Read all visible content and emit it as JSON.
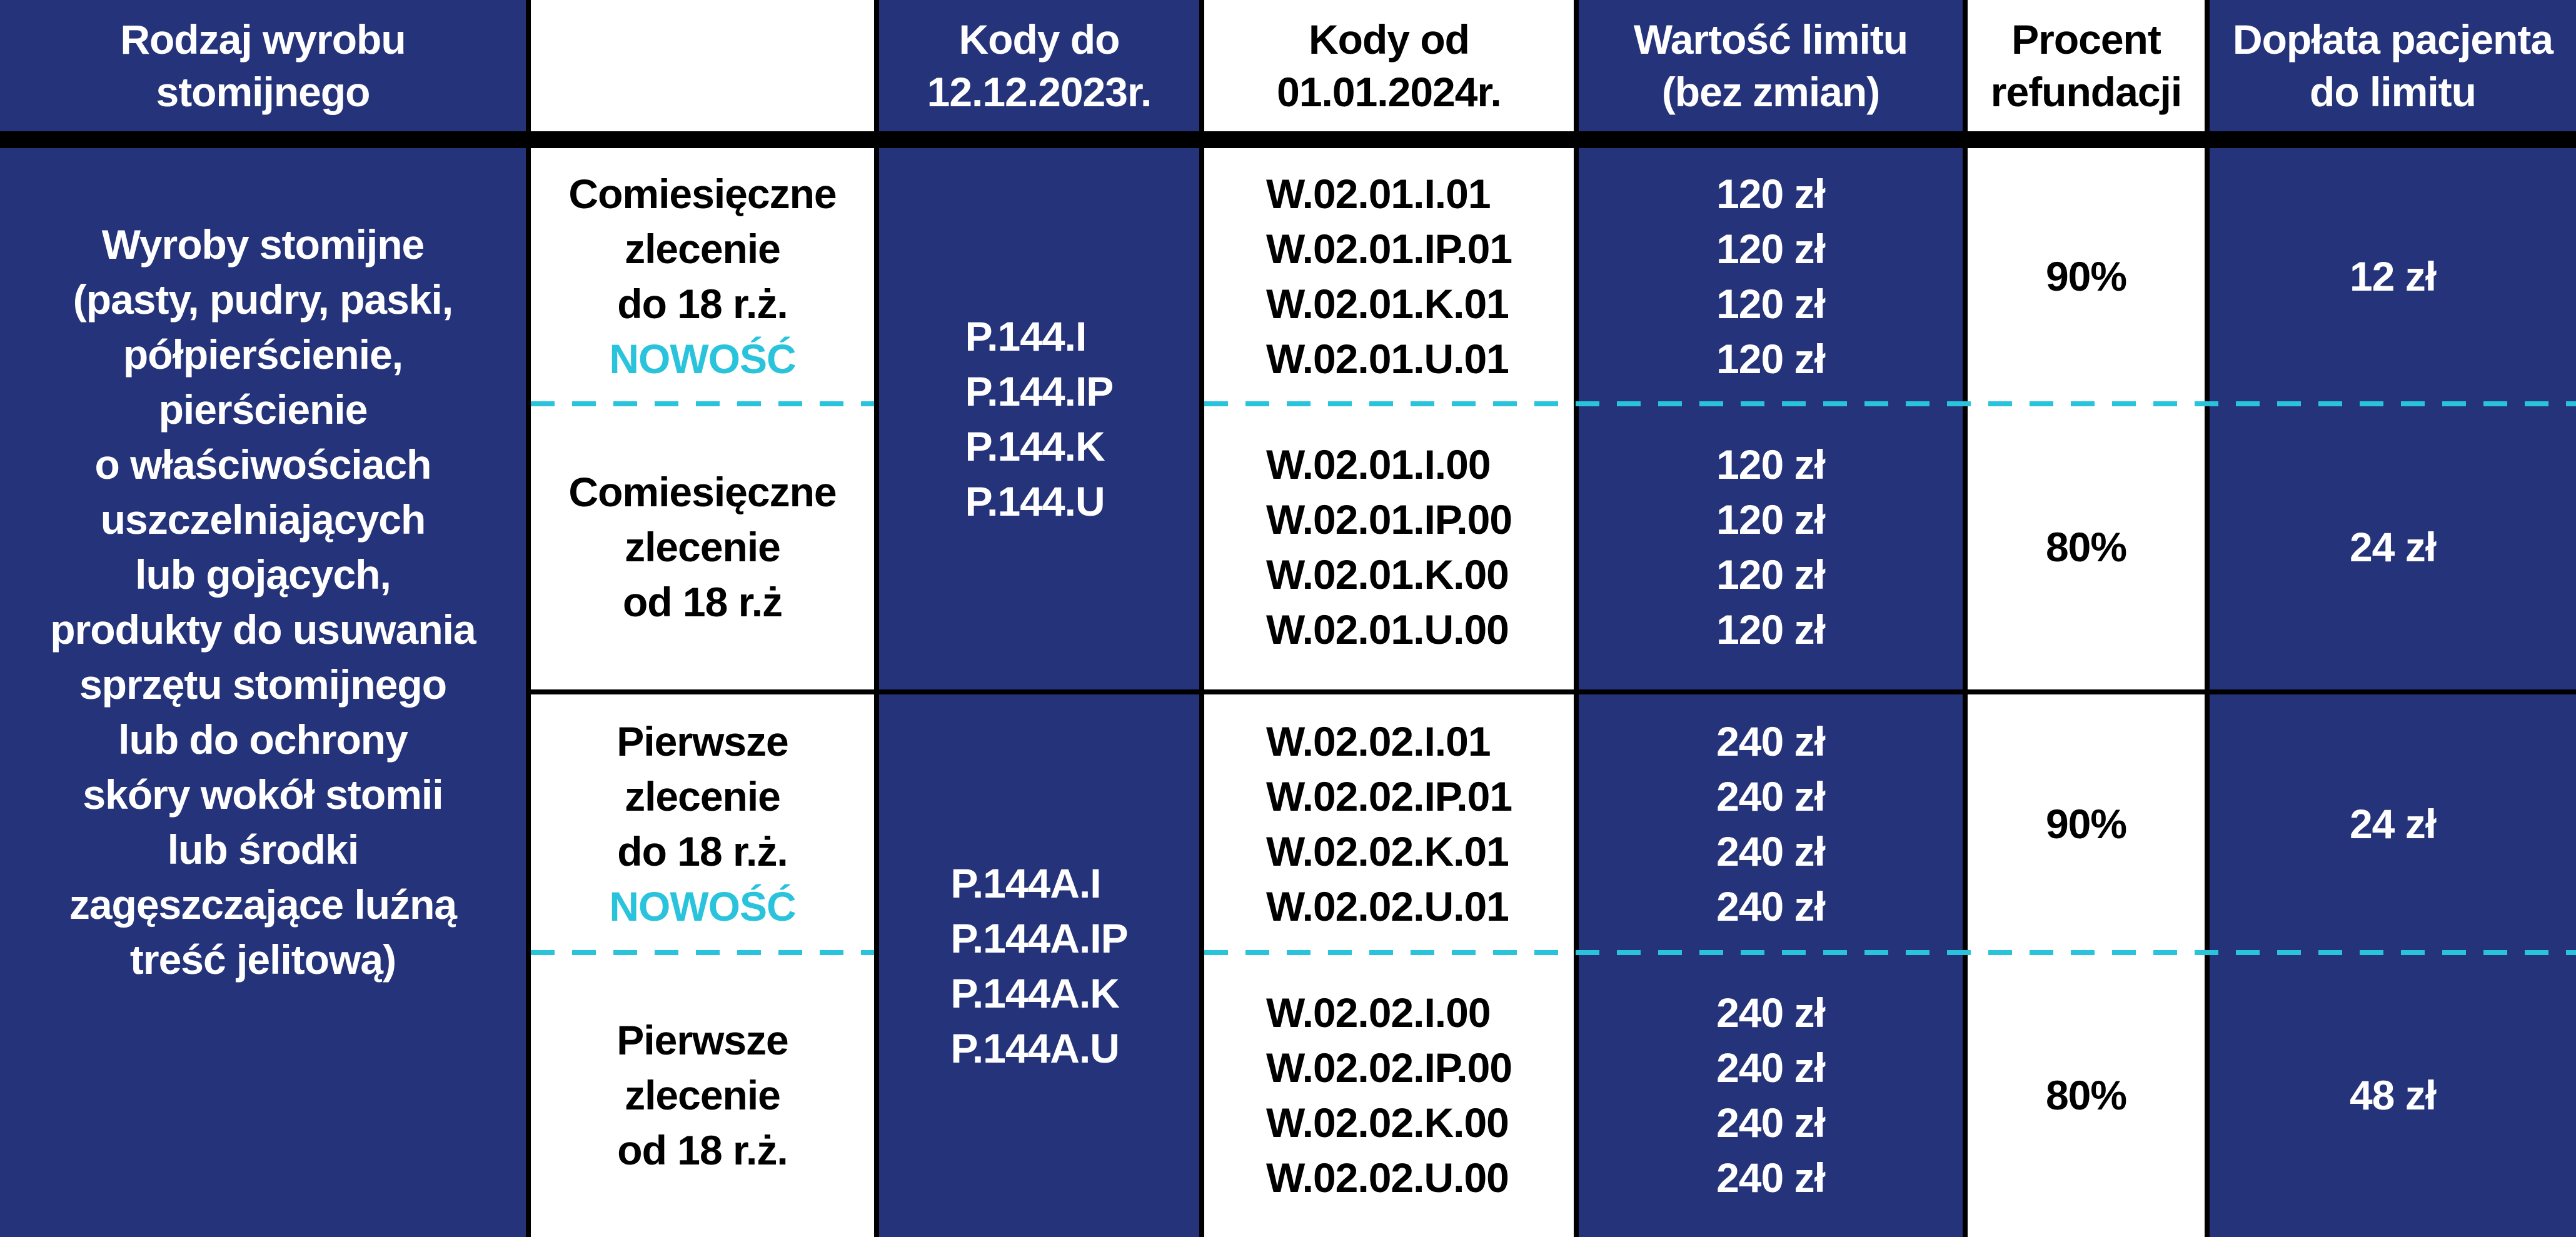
{
  "colors": {
    "navy": "#25347a",
    "accent": "#29c3dc",
    "border": "#000000"
  },
  "headers": [
    "Rodzaj wyrobu\nstomijnego",
    "",
    "Kody do\n12.12.2023r.",
    "Kody od\n01.01.2024r.",
    "Wartość limitu\n(bez zmian)",
    "Procent\nrefundacji",
    "Dopłata pacjenta\ndo limitu"
  ],
  "product": "Wyroby stomijne\n(pasty, pudry, paski,\npółpierścienie,\npierścienie\no właściwościach\nuszczelniających\nlub gojących,\nprodukty do usuwania\nsprzętu stomijnego\nlub do ochrony\nskóry wokół stomii\nlub środki\nzagęszczające luźną\ntreść jelitową)",
  "groups": [
    {
      "old_codes": [
        "P.144.I",
        "P.144.IP",
        "P.144.K",
        "P.144.U"
      ],
      "rows": [
        {
          "label": "Comiesięczne\nzlecenie\ndo 18 r.ż.",
          "badge": "NOWOŚĆ",
          "new_codes": [
            "W.02.01.I.01",
            "W.02.01.IP.01",
            "W.02.01.K.01",
            "W.02.01.U.01"
          ],
          "limits": [
            "120 zł",
            "120 zł",
            "120 zł",
            "120 zł"
          ],
          "percent": "90%",
          "copay": "12 zł"
        },
        {
          "label": "Comiesięczne\nzlecenie\nod 18 r.ż",
          "new_codes": [
            "W.02.01.I.00",
            "W.02.01.IP.00",
            "W.02.01.K.00",
            "W.02.01.U.00"
          ],
          "limits": [
            "120 zł",
            "120 zł",
            "120 zł",
            "120 zł"
          ],
          "percent": "80%",
          "copay": "24 zł"
        }
      ]
    },
    {
      "old_codes": [
        "P.144A.I",
        "P.144A.IP",
        "P.144A.K",
        "P.144A.U"
      ],
      "rows": [
        {
          "label": "Pierwsze\nzlecenie\ndo 18 r.ż.",
          "badge": "NOWOŚĆ",
          "new_codes": [
            "W.02.02.I.01",
            "W.02.02.IP.01",
            "W.02.02.K.01",
            "W.02.02.U.01"
          ],
          "limits": [
            "240 zł",
            "240 zł",
            "240 zł",
            "240 zł"
          ],
          "percent": "90%",
          "copay": "24 zł"
        },
        {
          "label": "Pierwsze\nzlecenie\nod 18 r.ż.",
          "new_codes": [
            "W.02.02.I.00",
            "W.02.02.IP.00",
            "W.02.02.K.00",
            "W.02.02.U.00"
          ],
          "limits": [
            "240 zł",
            "240 zł",
            "240 zł",
            "240 zł"
          ],
          "percent": "80%",
          "copay": "48 zł"
        }
      ]
    }
  ]
}
